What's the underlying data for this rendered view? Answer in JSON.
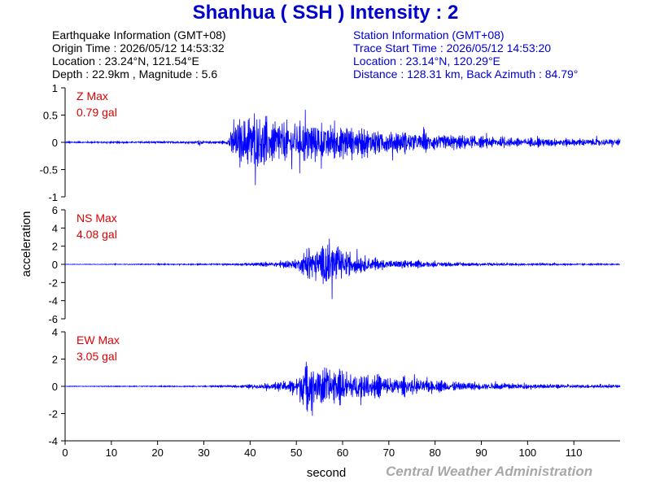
{
  "title": "Shanhua ( SSH ) Intensity : 2",
  "earthquake_info": {
    "heading": "Earthquake Information  (GMT+08)",
    "origin_time": "Origin Time : 2026/05/12 14:53:32",
    "location": "Location : 23.24°N, 121.54°E",
    "depth_magnitude": "Depth : 22.9km , Magnitude : 5.6"
  },
  "station_info": {
    "heading": "Station Information  (GMT+08)",
    "trace_start": "Trace Start Time : 2026/05/12 14:53:20",
    "location": "Location : 23.14°N, 120.29°E",
    "distance": "Distance : 128.31 km, Back Azimuth : 84.79°"
  },
  "credit": "Central Weather Administration",
  "colors": {
    "trace": "#0000ff",
    "title": "#0000cc",
    "max_label": "#dd0000",
    "axis": "#000000"
  },
  "chart_data": {
    "type": "line",
    "xlabel": "second",
    "ylabel": "acceleration",
    "xlim": [
      0,
      120
    ],
    "x_ticks": [
      0,
      10,
      20,
      30,
      40,
      50,
      60,
      70,
      80,
      90,
      100,
      110
    ],
    "grid": false,
    "series": [
      {
        "name": "Z",
        "max_label": "Z Max",
        "max_value": "0.79 gal",
        "ylim": [
          -1,
          1
        ],
        "y_ticks": [
          -1,
          -0.5,
          0,
          0.5,
          1
        ],
        "x": [
          0,
          10,
          20,
          28.5,
          29,
          29.5,
          30,
          35,
          36,
          38,
          41,
          45,
          50,
          55,
          60,
          65,
          70,
          80,
          90,
          100,
          110,
          120
        ],
        "envelope": [
          0.02,
          0.02,
          0.03,
          0.03,
          0.14,
          0.04,
          0.03,
          0.04,
          0.45,
          0.6,
          0.79,
          0.58,
          0.52,
          0.5,
          0.42,
          0.35,
          0.3,
          0.22,
          0.15,
          0.12,
          0.1,
          0.09
        ]
      },
      {
        "name": "NS",
        "max_label": "NS Max",
        "max_value": "4.08 gal",
        "ylim": [
          -6,
          6
        ],
        "y_ticks": [
          -6,
          -4,
          -2,
          0,
          2,
          4,
          6
        ],
        "x": [
          0,
          20,
          30,
          36,
          40,
          45,
          50,
          52,
          53,
          54,
          57,
          60,
          65,
          70,
          80,
          90,
          100,
          110,
          120
        ],
        "envelope": [
          0.03,
          0.08,
          0.1,
          0.12,
          0.25,
          0.4,
          0.8,
          2.0,
          3.6,
          2.6,
          4.08,
          2.0,
          1.2,
          0.7,
          0.4,
          0.25,
          0.18,
          0.12,
          0.1
        ]
      },
      {
        "name": "EW",
        "max_label": "EW Max",
        "max_value": "3.05 gal",
        "ylim": [
          -4,
          4
        ],
        "y_ticks": [
          -4,
          -2,
          0,
          2,
          4
        ],
        "x": [
          0,
          20,
          30,
          36,
          40,
          45,
          50,
          52,
          53,
          54,
          57,
          60,
          65,
          70,
          80,
          90,
          100,
          110,
          120
        ],
        "envelope": [
          0.03,
          0.05,
          0.06,
          0.1,
          0.2,
          0.35,
          0.9,
          3.05,
          2.6,
          2.5,
          1.8,
          1.6,
          1.3,
          1.0,
          0.6,
          0.4,
          0.25,
          0.2,
          0.15
        ]
      }
    ]
  }
}
